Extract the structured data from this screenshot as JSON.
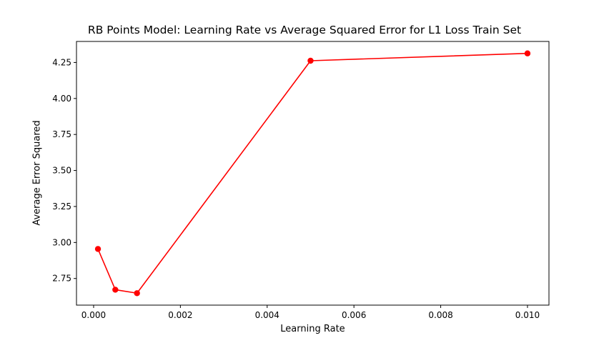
{
  "chart_data": {
    "type": "line",
    "title": "RB Points Model: Learning Rate vs Average Squared Error for L1 Loss Train Set",
    "xlabel": "Learning Rate",
    "ylabel": "Average Error Squared",
    "x": [
      0.0001,
      0.0005,
      0.001,
      0.005,
      0.01
    ],
    "series": [
      {
        "values": [
          2.955,
          2.672,
          2.648,
          4.262,
          4.313
        ],
        "color": "#ff0000",
        "marker": "circle"
      }
    ],
    "xlim": [
      -0.000395,
      0.010495
    ],
    "ylim": [
      2.565,
      4.396
    ],
    "xticks": [
      0.0,
      0.002,
      0.004,
      0.006,
      0.008,
      0.01
    ],
    "xtick_labels": [
      "0.000",
      "0.002",
      "0.004",
      "0.006",
      "0.008",
      "0.010"
    ],
    "yticks": [
      2.75,
      3.0,
      3.25,
      3.5,
      3.75,
      4.0,
      4.25
    ],
    "ytick_labels": [
      "2.75",
      "3.00",
      "3.25",
      "3.50",
      "3.75",
      "4.00",
      "4.25"
    ],
    "grid": false,
    "legend": false
  }
}
